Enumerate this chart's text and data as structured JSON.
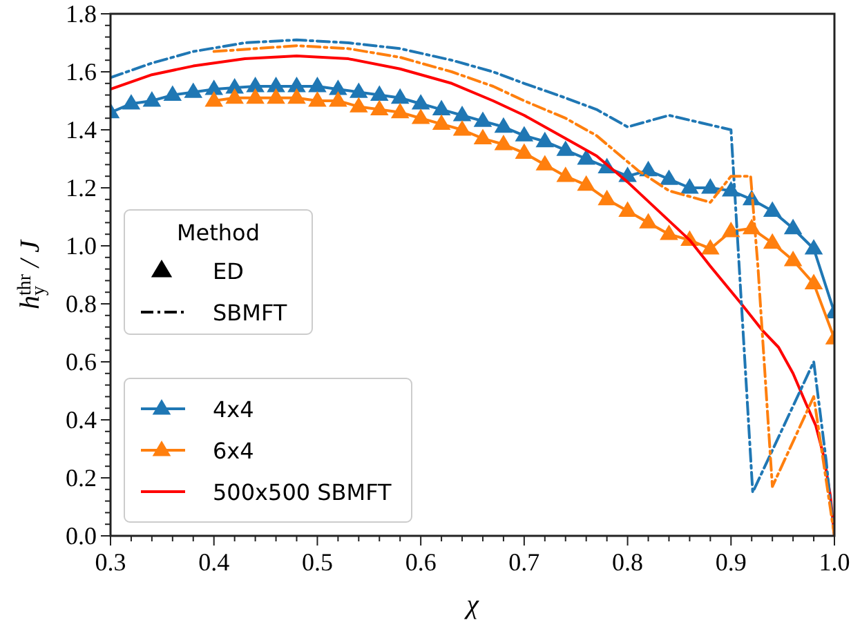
{
  "chart_data": {
    "type": "line",
    "xlabel": "χ",
    "ylabel": "h$_{y}$$^{thr}$ / J",
    "xlim": [
      0.3,
      1.0
    ],
    "ylim": [
      0,
      1.8
    ],
    "xticks": [
      {
        "value": 0.3,
        "label": "0.3"
      },
      {
        "value": 0.32,
        "label": null
      },
      {
        "value": 0.34,
        "label": null
      },
      {
        "value": 0.36,
        "label": null
      },
      {
        "value": 0.38,
        "label": null
      },
      {
        "value": 0.4,
        "label": "0.4"
      },
      {
        "value": 0.42,
        "label": null
      },
      {
        "value": 0.44,
        "label": null
      },
      {
        "value": 0.46,
        "label": null
      },
      {
        "value": 0.48,
        "label": null
      },
      {
        "value": 0.5,
        "label": "0.5"
      },
      {
        "value": 0.52,
        "label": null
      },
      {
        "value": 0.54,
        "label": null
      },
      {
        "value": 0.56,
        "label": null
      },
      {
        "value": 0.58,
        "label": null
      },
      {
        "value": 0.6,
        "label": "0.6"
      },
      {
        "value": 0.62,
        "label": null
      },
      {
        "value": 0.64,
        "label": null
      },
      {
        "value": 0.66,
        "label": null
      },
      {
        "value": 0.68,
        "label": null
      },
      {
        "value": 0.7,
        "label": "0.7"
      },
      {
        "value": 0.72,
        "label": null
      },
      {
        "value": 0.74,
        "label": null
      },
      {
        "value": 0.76,
        "label": null
      },
      {
        "value": 0.78,
        "label": null
      },
      {
        "value": 0.8,
        "label": "0.8"
      },
      {
        "value": 0.82,
        "label": null
      },
      {
        "value": 0.84,
        "label": null
      },
      {
        "value": 0.86,
        "label": null
      },
      {
        "value": 0.88,
        "label": null
      },
      {
        "value": 0.9,
        "label": "0.9"
      },
      {
        "value": 0.92,
        "label": null
      },
      {
        "value": 0.94,
        "label": null
      },
      {
        "value": 0.96,
        "label": null
      },
      {
        "value": 0.98,
        "label": null
      },
      {
        "value": 1.0,
        "label": "1.0"
      }
    ],
    "yticks": [
      {
        "value": 0,
        "label": "0.0"
      },
      {
        "value": 0.04,
        "label": null
      },
      {
        "value": 0.08,
        "label": null
      },
      {
        "value": 0.12,
        "label": null
      },
      {
        "value": 0.16,
        "label": null
      },
      {
        "value": 0.2,
        "label": "0.2"
      },
      {
        "value": 0.24,
        "label": null
      },
      {
        "value": 0.28,
        "label": null
      },
      {
        "value": 0.32,
        "label": null
      },
      {
        "value": 0.36,
        "label": null
      },
      {
        "value": 0.4,
        "label": "0.4"
      },
      {
        "value": 0.44,
        "label": null
      },
      {
        "value": 0.48,
        "label": null
      },
      {
        "value": 0.52,
        "label": null
      },
      {
        "value": 0.56,
        "label": null
      },
      {
        "value": 0.6,
        "label": "0.6"
      },
      {
        "value": 0.64,
        "label": null
      },
      {
        "value": 0.68,
        "label": null
      },
      {
        "value": 0.72,
        "label": null
      },
      {
        "value": 0.76,
        "label": null
      },
      {
        "value": 0.8,
        "label": "0.8"
      },
      {
        "value": 0.84,
        "label": null
      },
      {
        "value": 0.88,
        "label": null
      },
      {
        "value": 0.92,
        "label": null
      },
      {
        "value": 0.96,
        "label": null
      },
      {
        "value": 1.0,
        "label": "1.0"
      },
      {
        "value": 1.04,
        "label": null
      },
      {
        "value": 1.08,
        "label": null
      },
      {
        "value": 1.12,
        "label": null
      },
      {
        "value": 1.16,
        "label": null
      },
      {
        "value": 1.2,
        "label": "1.2"
      },
      {
        "value": 1.24,
        "label": null
      },
      {
        "value": 1.28,
        "label": null
      },
      {
        "value": 1.32,
        "label": null
      },
      {
        "value": 1.36,
        "label": null
      },
      {
        "value": 1.4,
        "label": "1.4"
      },
      {
        "value": 1.44,
        "label": null
      },
      {
        "value": 1.48,
        "label": null
      },
      {
        "value": 1.52,
        "label": null
      },
      {
        "value": 1.56,
        "label": null
      },
      {
        "value": 1.6,
        "label": "1.6"
      },
      {
        "value": 1.64,
        "label": null
      },
      {
        "value": 1.68,
        "label": null
      },
      {
        "value": 1.72,
        "label": null
      },
      {
        "value": 1.76,
        "label": null
      },
      {
        "value": 1.8,
        "label": "1.8"
      }
    ],
    "grid": false,
    "legend": "bottom left",
    "legend_title": "Method",
    "annotations": [
      "ED",
      "SBMFT"
    ],
    "series": [
      {
        "name": "4x4",
        "color": "#1f77b4",
        "marker": "triangle",
        "line_style": "solid",
        "x": [
          0.3,
          0.32,
          0.34,
          0.36,
          0.38,
          0.4,
          0.42,
          0.44,
          0.46,
          0.48,
          0.5,
          0.52,
          0.54,
          0.56,
          0.58,
          0.6,
          0.62,
          0.64,
          0.66,
          0.68,
          0.7,
          0.72,
          0.74,
          0.76,
          0.78,
          0.8,
          0.82,
          0.84,
          0.86,
          0.88,
          0.9,
          0.92,
          0.94,
          0.96,
          0.98,
          1.0
        ],
        "values": [
          1.46,
          1.49,
          1.5,
          1.52,
          1.53,
          1.54,
          1.545,
          1.55,
          1.55,
          1.55,
          1.55,
          1.54,
          1.53,
          1.52,
          1.51,
          1.49,
          1.47,
          1.45,
          1.43,
          1.41,
          1.38,
          1.36,
          1.33,
          1.3,
          1.27,
          1.24,
          1.26,
          1.23,
          1.2,
          1.2,
          1.19,
          1.16,
          1.12,
          1.06,
          0.99,
          0.77
        ]
      },
      {
        "name": "6x4",
        "color": "#ff7f0e",
        "marker": "triangle",
        "line_style": "solid",
        "x": [
          0.4,
          0.42,
          0.44,
          0.46,
          0.48,
          0.5,
          0.52,
          0.54,
          0.56,
          0.58,
          0.6,
          0.62,
          0.64,
          0.66,
          0.68,
          0.7,
          0.72,
          0.74,
          0.76,
          0.78,
          0.8,
          0.82,
          0.84,
          0.86,
          0.88,
          0.9,
          0.92,
          0.94,
          0.96,
          0.98,
          1.0
        ],
        "values": [
          1.5,
          1.51,
          1.51,
          1.51,
          1.51,
          1.5,
          1.5,
          1.48,
          1.47,
          1.46,
          1.44,
          1.42,
          1.4,
          1.37,
          1.35,
          1.32,
          1.28,
          1.24,
          1.21,
          1.16,
          1.12,
          1.08,
          1.04,
          1.02,
          0.99,
          1.05,
          1.06,
          1.01,
          0.95,
          0.87,
          0.68
        ]
      },
      {
        "name": "500x500 SBMFT",
        "color": "#ff0000",
        "marker": "none",
        "line_style": "solid",
        "x": [
          0.3,
          0.34,
          0.38,
          0.43,
          0.48,
          0.53,
          0.58,
          0.63,
          0.67,
          0.7,
          0.74,
          0.77,
          0.8,
          0.83,
          0.86,
          0.88,
          0.91,
          0.93,
          0.946,
          0.96,
          0.972,
          0.982,
          0.99,
          0.996,
          1.0
        ],
        "values": [
          1.54,
          1.59,
          1.62,
          1.645,
          1.655,
          1.645,
          1.61,
          1.56,
          1.5,
          1.45,
          1.37,
          1.31,
          1.22,
          1.12,
          1.02,
          0.93,
          0.8,
          0.71,
          0.65,
          0.56,
          0.46,
          0.38,
          0.27,
          0.14,
          0.0
        ]
      },
      {
        "color": "#1f77b4",
        "marker": "none",
        "line_style": "dashdot",
        "x": [
          0.3,
          0.34,
          0.38,
          0.43,
          0.48,
          0.53,
          0.58,
          0.63,
          0.67,
          0.7,
          0.74,
          0.77,
          0.8,
          0.84,
          0.9,
          0.921,
          0.98,
          0.992,
          0.996,
          1.0
        ],
        "values": [
          1.58,
          1.63,
          1.67,
          1.7,
          1.71,
          1.7,
          1.68,
          1.64,
          1.6,
          1.56,
          1.51,
          1.47,
          1.41,
          1.45,
          1.4,
          0.15,
          0.6,
          0.26,
          0.12,
          0.0
        ]
      },
      {
        "color": "#ff7f0e",
        "marker": "none",
        "line_style": "dashdot",
        "x": [
          0.4,
          0.44,
          0.48,
          0.53,
          0.58,
          0.63,
          0.67,
          0.7,
          0.74,
          0.77,
          0.81,
          0.84,
          0.88,
          0.9,
          0.919,
          0.926,
          0.94,
          0.98,
          0.995,
          1.0
        ],
        "values": [
          1.67,
          1.68,
          1.69,
          1.68,
          1.65,
          1.6,
          1.55,
          1.5,
          1.44,
          1.38,
          1.26,
          1.19,
          1.15,
          1.24,
          1.24,
          0.93,
          0.17,
          0.48,
          0.12,
          0.0
        ]
      }
    ]
  }
}
